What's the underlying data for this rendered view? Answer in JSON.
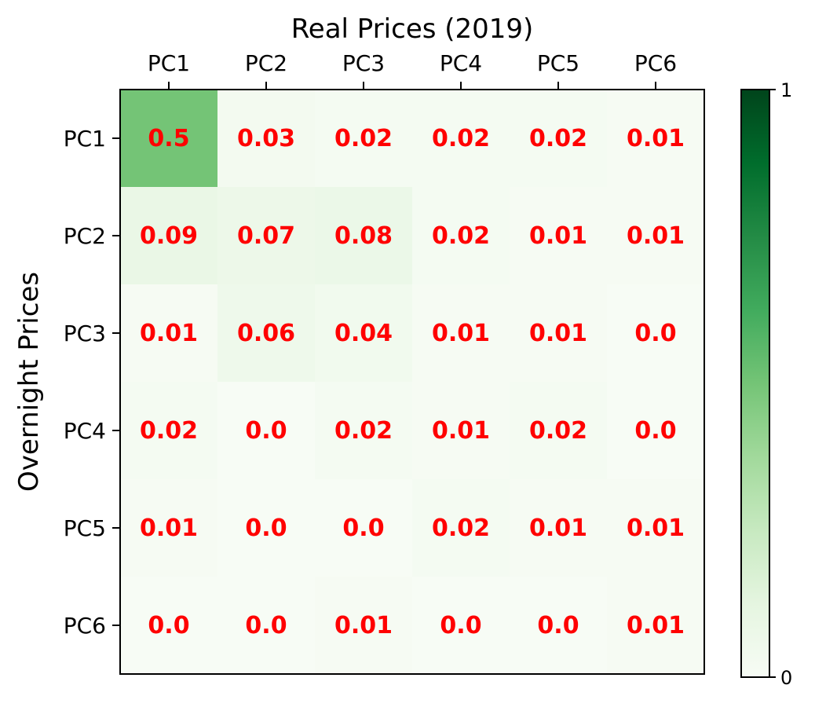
{
  "chart_data": {
    "type": "heatmap",
    "title": "Real Prices (2019)",
    "xlabel": "",
    "ylabel": "Overnight Prices",
    "x_categories": [
      "PC1",
      "PC2",
      "PC3",
      "PC4",
      "PC5",
      "PC6"
    ],
    "y_categories": [
      "PC1",
      "PC2",
      "PC3",
      "PC4",
      "PC5",
      "PC6"
    ],
    "x_tick_position": "top",
    "values": [
      [
        0.5,
        0.03,
        0.02,
        0.02,
        0.02,
        0.01
      ],
      [
        0.09,
        0.07,
        0.08,
        0.02,
        0.01,
        0.01
      ],
      [
        0.01,
        0.06,
        0.04,
        0.01,
        0.01,
        0.0
      ],
      [
        0.02,
        0.0,
        0.02,
        0.01,
        0.02,
        0.0
      ],
      [
        0.01,
        0.0,
        0.0,
        0.02,
        0.01,
        0.01
      ],
      [
        0.0,
        0.0,
        0.01,
        0.0,
        0.0,
        0.01
      ]
    ],
    "cell_labels": [
      [
        "0.5",
        "0.03",
        "0.02",
        "0.02",
        "0.02",
        "0.01"
      ],
      [
        "0.09",
        "0.07",
        "0.08",
        "0.02",
        "0.01",
        "0.01"
      ],
      [
        "0.01",
        "0.06",
        "0.04",
        "0.01",
        "0.01",
        "0.0"
      ],
      [
        "0.02",
        "0.0",
        "0.02",
        "0.01",
        "0.02",
        "0.0"
      ],
      [
        "0.01",
        "0.0",
        "0.0",
        "0.02",
        "0.01",
        "0.01"
      ],
      [
        "0.0",
        "0.0",
        "0.01",
        "0.0",
        "0.0",
        "0.01"
      ]
    ],
    "colormap": "Greens",
    "vmin": 0,
    "vmax": 1,
    "colorbar": {
      "ticks": [
        0,
        1
      ],
      "tick_labels": [
        "0",
        "1"
      ]
    },
    "label_color": "#ff0000",
    "grid": false
  }
}
